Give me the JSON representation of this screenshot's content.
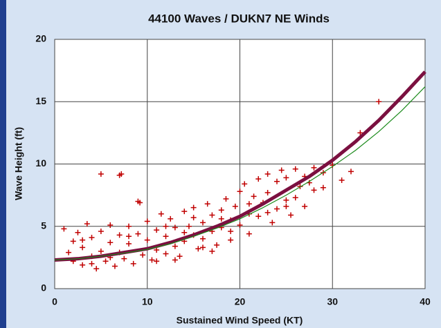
{
  "chart_data": {
    "type": "scatter",
    "title": "44100 Waves / DUKN7  NE  Winds",
    "x_label": "Sustained Wind Speed (KT)",
    "y_label": "Wave Height (ft)",
    "xlim": [
      0,
      40
    ],
    "xticks": [
      0,
      10,
      20,
      30,
      40
    ],
    "ylim": [
      0,
      20
    ],
    "yticks": [
      0,
      5,
      10,
      15,
      20
    ],
    "grid": true,
    "series": [
      {
        "type": "scatter",
        "color": "#c00000",
        "x": [
          1,
          1.5,
          2,
          2,
          2.5,
          3,
          3,
          3.5,
          4,
          4,
          4.5,
          5,
          5,
          5.5,
          6,
          6,
          6.5,
          7,
          7,
          7.5,
          8,
          8,
          8.5,
          9,
          9,
          9.5,
          10,
          10,
          10.5,
          11,
          11,
          11.5,
          12,
          12,
          12.5,
          13,
          13,
          13.5,
          14,
          14,
          14.5,
          15,
          15,
          15.5,
          16,
          16,
          16.5,
          17,
          17,
          17.5,
          18,
          18,
          18.5,
          19,
          19,
          19.5,
          20,
          20,
          20.5,
          21,
          21,
          21.5,
          22,
          22,
          22.5,
          23,
          23,
          23.5,
          24,
          24,
          24.5,
          25,
          25,
          25.5,
          26,
          26,
          26.5,
          27,
          27,
          27.5,
          28,
          28,
          29,
          29,
          30,
          31,
          32,
          33,
          35,
          5,
          7,
          7.2,
          9.2,
          3,
          4,
          6,
          8,
          11,
          13,
          15,
          17,
          19,
          21,
          23,
          25,
          12,
          14,
          16,
          18
        ],
        "values": [
          4.8,
          2.9,
          3.8,
          2.2,
          4.5,
          1.9,
          3.3,
          5.2,
          2.6,
          4.1,
          1.6,
          3.0,
          4.6,
          2.2,
          3.7,
          5.1,
          1.8,
          2.9,
          4.3,
          2.4,
          3.6,
          5.0,
          2.0,
          4.4,
          7.0,
          2.7,
          3.9,
          5.4,
          2.3,
          4.7,
          3.1,
          6.0,
          2.8,
          4.2,
          5.6,
          3.4,
          4.9,
          2.6,
          6.2,
          3.8,
          5.0,
          4.3,
          6.5,
          3.2,
          5.3,
          4.0,
          6.8,
          4.6,
          5.9,
          3.5,
          6.3,
          4.9,
          7.2,
          5.5,
          3.9,
          6.6,
          7.8,
          5.1,
          8.4,
          6.0,
          4.4,
          7.4,
          8.8,
          5.8,
          6.9,
          9.2,
          7.7,
          5.3,
          8.6,
          6.4,
          9.5,
          7.1,
          8.9,
          5.9,
          9.6,
          7.3,
          8.2,
          9.0,
          6.6,
          8.5,
          9.7,
          7.9,
          9.3,
          8.1,
          9.9,
          8.7,
          9.4,
          12.5,
          15.0,
          9.2,
          9.1,
          9.2,
          6.9,
          3.9,
          2.0,
          2.5,
          4.2,
          2.2,
          2.3,
          5.7,
          3.0,
          4.6,
          6.8,
          6.1,
          6.6,
          5.0,
          4.5,
          3.3,
          5.6
        ]
      },
      {
        "type": "line",
        "color": "#7b1040",
        "width": 5,
        "x": [
          0,
          2.5,
          5,
          7.5,
          10,
          12.5,
          15,
          17.5,
          20,
          22.5,
          25,
          27.5,
          30,
          32.5,
          35,
          37.5,
          40
        ],
        "values": [
          2.3,
          2.4,
          2.6,
          2.9,
          3.2,
          3.7,
          4.3,
          5.0,
          5.8,
          6.8,
          7.9,
          9.0,
          10.3,
          11.8,
          13.5,
          15.4,
          17.4
        ]
      },
      {
        "type": "line",
        "color": "#1a8a1a",
        "width": 1.2,
        "x": [
          0,
          2.5,
          5,
          7.5,
          10,
          12.5,
          15,
          17.5,
          20,
          22.5,
          25,
          27.5,
          30,
          32.5,
          35,
          37.5,
          40
        ],
        "values": [
          2.3,
          2.4,
          2.6,
          2.85,
          3.15,
          3.6,
          4.2,
          4.85,
          5.6,
          6.5,
          7.5,
          8.6,
          9.8,
          11.1,
          12.6,
          14.3,
          16.2
        ]
      }
    ]
  }
}
